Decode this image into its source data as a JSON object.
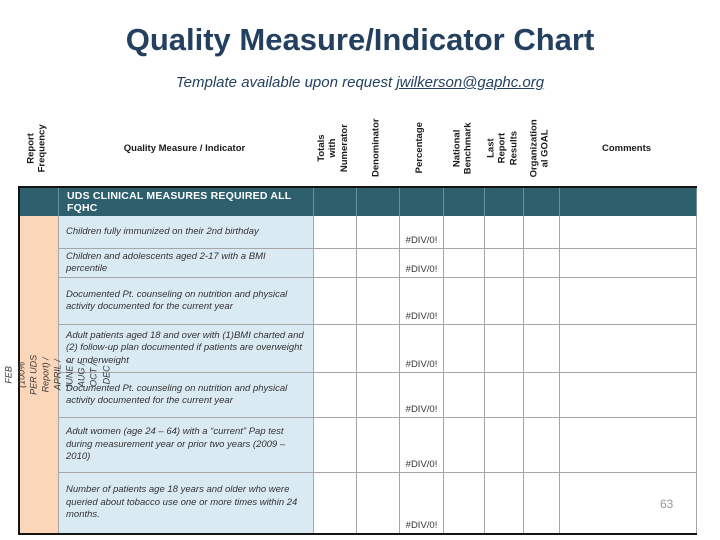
{
  "slide": {
    "title": "Quality Measure/Indicator Chart",
    "subtitle_prefix": "Template available upon request ",
    "subtitle_link": "jwilkerson@gaphc.org",
    "page_number": "63"
  },
  "table": {
    "headers": {
      "report_frequency": "Report\nFrequency",
      "quality_measure": "Quality Measure / Indicator",
      "totals_with_numerator": "Totals with\nNumerator",
      "denominator": "Denominator",
      "percentage": "Percentage",
      "national_benchmark": "National\nBenchmark",
      "last_report_results": "Last Report\nResults",
      "organizational_goal": "Organization\nal GOAL",
      "comments": "Comments"
    },
    "section_header": "UDS CLINICAL MEASURES REQUIRED ALL FQHC",
    "frequency_note": "REPORT  BI-MONTHLY  FEB  (100% PER  UDS Report) / APRIL /\nJUNE /  AUG / OCT / DEC",
    "rows": [
      {
        "measure": "Children fully immunized on their 2nd birthday",
        "percentage": "#DIV/0!"
      },
      {
        "measure": "Children and adolescents aged 2-17 with a BMI percentile",
        "percentage": "#DIV/0!"
      },
      {
        "measure": "Documented Pt. counseling on nutrition and physical activity documented for the current year",
        "percentage": "#DIV/0!"
      },
      {
        "measure": "Adult patients aged 18 and over with (1)BMI charted and (2) follow-up plan documented if patients are overweight or underweight",
        "percentage": "#DIV/0!"
      },
      {
        "measure": "Documented Pt. counseling on nutrition and physical activity documented for the current year",
        "percentage": "#DIV/0!"
      },
      {
        "measure": "Adult women (age 24 – 64) with a “current” Pap test during measurement year or prior two years (2009 – 2010)",
        "percentage": "#DIV/0!"
      },
      {
        "measure": "Number of patients age 18 years and older who were queried about tobacco use one or more times within 24 months.",
        "percentage": "#DIV/0!"
      }
    ]
  },
  "colors": {
    "title_text": "#24405F",
    "teal_band": "#2D5F6D",
    "measure_row_bg": "#D9EAF2",
    "frequency_col_bg": "#FBD6B8",
    "grid_border": "#A6A6A6",
    "outer_border": "#141414"
  }
}
